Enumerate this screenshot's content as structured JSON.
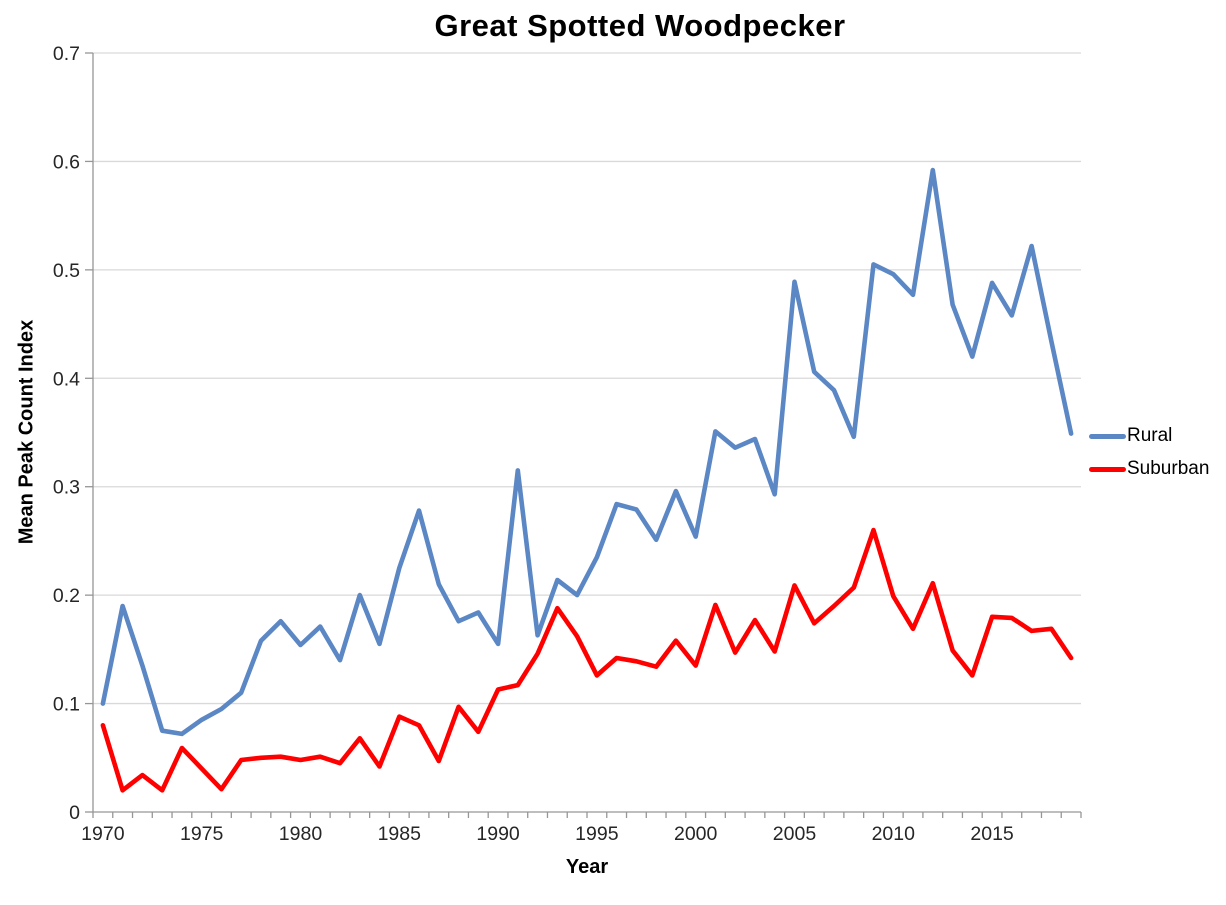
{
  "title": "Great Spotted Woodpecker",
  "colors": {
    "rural_line": "#5B87C5",
    "suburban_line": "#FF0000",
    "gridline": "#D9D9D9",
    "axis_line": "#969696",
    "tick_text": "#262626",
    "background": "#FFFFFF"
  },
  "legend": {
    "items": [
      {
        "label": "Rural",
        "color": "#5B87C5"
      },
      {
        "label": "Suburban",
        "color": "#FF0000"
      }
    ]
  },
  "chart_data": {
    "type": "line",
    "title": "Great Spotted Woodpecker",
    "xlabel": "Year",
    "ylabel": "Mean Peak Count Index",
    "ylim": [
      0,
      0.7
    ],
    "ytick_step": 0.1,
    "ytick_labels": [
      "0",
      "0.1",
      "0.2",
      "0.3",
      "0.4",
      "0.5",
      "0.6",
      "0.7"
    ],
    "xtick_labels": [
      "1970",
      "1975",
      "1980",
      "1985",
      "1990",
      "1995",
      "2000",
      "2005",
      "2010",
      "2015"
    ],
    "grid": "horizontal",
    "legend_position": "right",
    "x": [
      1970,
      1971,
      1972,
      1973,
      1974,
      1975,
      1976,
      1977,
      1978,
      1979,
      1980,
      1981,
      1982,
      1983,
      1984,
      1985,
      1986,
      1987,
      1988,
      1989,
      1990,
      1991,
      1992,
      1993,
      1994,
      1995,
      1996,
      1997,
      1998,
      1999,
      2000,
      2001,
      2002,
      2003,
      2004,
      2005,
      2006,
      2007,
      2008,
      2009,
      2010,
      2011,
      2012,
      2013,
      2014,
      2015,
      2016,
      2017,
      2018,
      2019
    ],
    "series": [
      {
        "name": "Rural",
        "color": "#5B87C5",
        "values": [
          0.1,
          0.19,
          0.135,
          0.075,
          0.072,
          0.085,
          0.095,
          0.11,
          0.158,
          0.176,
          0.154,
          0.171,
          0.14,
          0.2,
          0.155,
          0.225,
          0.278,
          0.21,
          0.176,
          0.184,
          0.155,
          0.315,
          0.163,
          0.214,
          0.2,
          0.235,
          0.284,
          0.279,
          0.251,
          0.296,
          0.254,
          0.351,
          0.336,
          0.344,
          0.293,
          0.489,
          0.406,
          0.389,
          0.346,
          0.505,
          0.496,
          0.477,
          0.592,
          0.468,
          0.42,
          0.488,
          0.458,
          0.522,
          0.434,
          0.349
        ]
      },
      {
        "name": "Suburban",
        "color": "#FF0000",
        "values": [
          0.08,
          0.02,
          0.034,
          0.02,
          0.059,
          0.04,
          0.021,
          0.048,
          0.05,
          0.051,
          0.048,
          0.051,
          0.045,
          0.068,
          0.042,
          0.088,
          0.08,
          0.047,
          0.097,
          0.074,
          0.113,
          0.117,
          0.146,
          0.188,
          0.162,
          0.126,
          0.142,
          0.139,
          0.134,
          0.158,
          0.135,
          0.191,
          0.147,
          0.177,
          0.148,
          0.209,
          0.174,
          0.19,
          0.207,
          0.26,
          0.199,
          0.169,
          0.211,
          0.149,
          0.126,
          0.18,
          0.179,
          0.167,
          0.169,
          0.142
        ]
      }
    ]
  }
}
